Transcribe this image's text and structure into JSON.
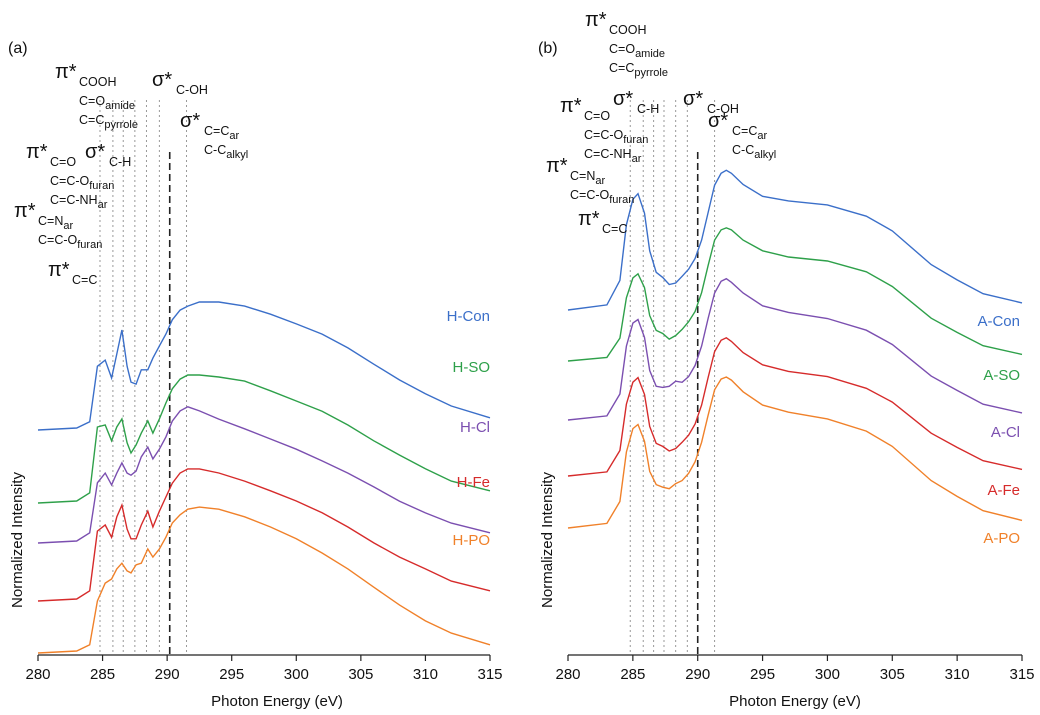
{
  "chart_data": [
    {
      "panel": "(a)",
      "type": "line",
      "xlabel": "Photon Energy (eV)",
      "ylabel": "Normalized Intensity",
      "xlim": [
        280,
        315
      ],
      "xticks": [
        280,
        285,
        290,
        295,
        300,
        305,
        310,
        315
      ],
      "reference_lines": [
        {
          "x": 284.8,
          "style": "dotted"
        },
        {
          "x": 285.8,
          "style": "dotted"
        },
        {
          "x": 286.6,
          "style": "dotted"
        },
        {
          "x": 287.5,
          "style": "dotted"
        },
        {
          "x": 288.4,
          "style": "dotted"
        },
        {
          "x": 289.4,
          "style": "dotted"
        },
        {
          "x": 290.2,
          "style": "dashed"
        },
        {
          "x": 291.5,
          "style": "dotted"
        }
      ],
      "annotations": [
        {
          "symbol": "π*",
          "lines": [
            "COOH",
            "C=O_amide",
            "C=C_pyrrole"
          ]
        },
        {
          "symbol": "σ*",
          "lines": [
            "C-OH"
          ]
        },
        {
          "symbol": "σ*",
          "lines": [
            "C=C_ar",
            "C-C_alkyl"
          ]
        },
        {
          "symbol": "π*",
          "lines": [
            "C=O",
            "C=C-O_furan",
            "C=C-NH_ar"
          ]
        },
        {
          "symbol": "σ*",
          "lines": [
            "C-H"
          ]
        },
        {
          "symbol": "π*",
          "lines": [
            "C=N_ar",
            "C=C-O_furan"
          ]
        },
        {
          "symbol": "π*",
          "lines": [
            "C=C"
          ]
        }
      ],
      "series": [
        {
          "name": "H-Con",
          "color": "#3b6fc9",
          "x": [
            280,
            283,
            284,
            284.6,
            285.2,
            285.7,
            286.1,
            286.5,
            286.9,
            287.2,
            287.6,
            288.0,
            288.5,
            288.9,
            289.4,
            289.9,
            290.4,
            291.0,
            291.6,
            292.5,
            294,
            296,
            298,
            300,
            302,
            304,
            306,
            308,
            310,
            312,
            315
          ],
          "y": [
            0.0,
            0.004,
            0.016,
            0.125,
            0.137,
            0.102,
            0.149,
            0.196,
            0.125,
            0.094,
            0.09,
            0.118,
            0.118,
            0.141,
            0.165,
            0.188,
            0.216,
            0.235,
            0.243,
            0.251,
            0.251,
            0.243,
            0.227,
            0.208,
            0.188,
            0.161,
            0.129,
            0.098,
            0.071,
            0.047,
            0.024
          ]
        },
        {
          "name": "H-SO",
          "color": "#2ea04a",
          "x": [
            280,
            283,
            284,
            284.6,
            285.2,
            285.7,
            286.1,
            286.5,
            286.9,
            287.2,
            287.6,
            288.0,
            288.5,
            288.9,
            289.4,
            289.9,
            290.4,
            291.0,
            291.6,
            292.5,
            294,
            296,
            298,
            300,
            302,
            304,
            306,
            308,
            310,
            312,
            315
          ],
          "y": [
            0.0,
            0.004,
            0.02,
            0.149,
            0.153,
            0.122,
            0.149,
            0.165,
            0.118,
            0.098,
            0.114,
            0.137,
            0.161,
            0.137,
            0.165,
            0.196,
            0.224,
            0.243,
            0.251,
            0.251,
            0.247,
            0.239,
            0.22,
            0.2,
            0.18,
            0.153,
            0.122,
            0.094,
            0.067,
            0.043,
            0.024
          ]
        },
        {
          "name": "H-Cl",
          "color": "#7b4fb0",
          "x": [
            280,
            283,
            284,
            284.6,
            285.2,
            285.7,
            286.1,
            286.5,
            286.9,
            287.2,
            287.6,
            288.0,
            288.5,
            288.9,
            289.4,
            289.9,
            290.4,
            291.0,
            291.6,
            292.5,
            294,
            296,
            298,
            300,
            302,
            304,
            306,
            308,
            310,
            312,
            315
          ],
          "y": [
            0.0,
            0.004,
            0.02,
            0.118,
            0.137,
            0.114,
            0.137,
            0.157,
            0.137,
            0.133,
            0.141,
            0.169,
            0.188,
            0.165,
            0.184,
            0.208,
            0.239,
            0.259,
            0.267,
            0.259,
            0.243,
            0.224,
            0.204,
            0.184,
            0.161,
            0.137,
            0.11,
            0.082,
            0.059,
            0.039,
            0.02
          ]
        },
        {
          "name": "H-Fe",
          "color": "#d62b2b",
          "x": [
            280,
            283,
            284,
            284.6,
            285.2,
            285.7,
            286.1,
            286.5,
            286.9,
            287.2,
            287.6,
            288.0,
            288.5,
            288.9,
            289.4,
            289.9,
            290.4,
            291.0,
            291.6,
            292.5,
            294,
            296,
            298,
            300,
            302,
            304,
            306,
            308,
            310,
            312,
            315
          ],
          "y": [
            0.0,
            0.004,
            0.02,
            0.137,
            0.149,
            0.125,
            0.165,
            0.188,
            0.141,
            0.122,
            0.122,
            0.149,
            0.176,
            0.145,
            0.176,
            0.204,
            0.231,
            0.251,
            0.259,
            0.259,
            0.251,
            0.235,
            0.216,
            0.196,
            0.173,
            0.145,
            0.114,
            0.086,
            0.063,
            0.039,
            0.02
          ]
        },
        {
          "name": "H-PO",
          "color": "#f0812a",
          "x": [
            280,
            283,
            284,
            284.6,
            285.2,
            285.7,
            286.1,
            286.5,
            286.9,
            287.2,
            287.6,
            288.0,
            288.5,
            288.9,
            289.4,
            289.9,
            290.4,
            291.0,
            291.6,
            292.5,
            294,
            296,
            298,
            300,
            302,
            304,
            306,
            308,
            310,
            312,
            315
          ],
          "y": [
            0.0,
            0.004,
            0.016,
            0.102,
            0.137,
            0.145,
            0.165,
            0.176,
            0.161,
            0.157,
            0.173,
            0.176,
            0.204,
            0.188,
            0.204,
            0.227,
            0.255,
            0.271,
            0.282,
            0.286,
            0.282,
            0.267,
            0.247,
            0.224,
            0.196,
            0.165,
            0.129,
            0.094,
            0.063,
            0.039,
            0.016
          ]
        }
      ]
    },
    {
      "panel": "(b)",
      "type": "line",
      "xlabel": "Photon Energy (eV)",
      "ylabel": "Normalized Intensity",
      "xlim": [
        280,
        315
      ],
      "xticks": [
        280,
        285,
        290,
        295,
        300,
        305,
        310,
        315
      ],
      "reference_lines": [
        {
          "x": 284.8,
          "style": "dotted"
        },
        {
          "x": 285.8,
          "style": "dotted"
        },
        {
          "x": 286.6,
          "style": "dotted"
        },
        {
          "x": 287.4,
          "style": "dotted"
        },
        {
          "x": 288.3,
          "style": "dotted"
        },
        {
          "x": 289.2,
          "style": "dotted"
        },
        {
          "x": 290.0,
          "style": "dashed"
        },
        {
          "x": 291.3,
          "style": "dotted"
        }
      ],
      "annotations": [
        {
          "symbol": "π*",
          "lines": [
            "COOH",
            "C=O_amide",
            "C=C_pyrrole"
          ]
        },
        {
          "symbol": "σ*",
          "lines": [
            "C-H"
          ]
        },
        {
          "symbol": "σ*",
          "lines": [
            "C-OH"
          ]
        },
        {
          "symbol": "σ*",
          "lines": [
            "C=C_ar",
            "C-C_alkyl"
          ]
        },
        {
          "symbol": "π*",
          "lines": [
            "C=O",
            "C=C-O_furan",
            "C=C-NH_ar"
          ]
        },
        {
          "symbol": "π*",
          "lines": [
            "C=N_ar",
            "C=C-O_furan"
          ]
        },
        {
          "symbol": "π*",
          "lines": [
            "C=C"
          ]
        }
      ],
      "series": [
        {
          "name": "A-Con",
          "color": "#3b6fc9",
          "x": [
            280,
            283,
            284,
            284.5,
            285.0,
            285.4,
            285.9,
            286.3,
            286.8,
            287.3,
            287.8,
            288.3,
            288.8,
            289.3,
            289.8,
            290.3,
            290.8,
            291.3,
            291.8,
            292.2,
            292.6,
            293.5,
            295,
            297,
            300,
            303,
            305,
            308,
            310,
            312,
            315
          ],
          "y": [
            0.0,
            0.01,
            0.058,
            0.167,
            0.217,
            0.228,
            0.19,
            0.116,
            0.074,
            0.064,
            0.05,
            0.053,
            0.066,
            0.08,
            0.101,
            0.137,
            0.191,
            0.245,
            0.268,
            0.274,
            0.268,
            0.246,
            0.223,
            0.214,
            0.206,
            0.184,
            0.155,
            0.089,
            0.059,
            0.032,
            0.014
          ]
        },
        {
          "name": "A-SO",
          "color": "#2ea04a",
          "x": [
            280,
            283,
            284,
            284.5,
            285.0,
            285.4,
            285.9,
            286.3,
            286.8,
            287.3,
            287.8,
            288.3,
            288.8,
            289.3,
            289.8,
            290.3,
            290.8,
            291.3,
            291.8,
            292.2,
            292.6,
            293.5,
            295,
            297,
            300,
            303,
            305,
            308,
            310,
            312,
            315
          ],
          "y": [
            0.0,
            0.007,
            0.045,
            0.124,
            0.163,
            0.171,
            0.144,
            0.089,
            0.06,
            0.054,
            0.043,
            0.05,
            0.062,
            0.077,
            0.097,
            0.134,
            0.187,
            0.237,
            0.257,
            0.261,
            0.257,
            0.237,
            0.216,
            0.204,
            0.196,
            0.175,
            0.146,
            0.084,
            0.056,
            0.03,
            0.013
          ]
        },
        {
          "name": "A-Cl",
          "color": "#7b4fb0",
          "x": [
            280,
            283,
            284,
            284.5,
            285.0,
            285.4,
            285.9,
            286.3,
            286.8,
            287.3,
            287.8,
            288.3,
            288.8,
            289.3,
            289.8,
            290.3,
            290.8,
            291.3,
            291.8,
            292.2,
            292.6,
            293.5,
            295,
            297,
            300,
            303,
            305,
            308,
            310,
            312,
            315
          ],
          "y": [
            0.0,
            0.008,
            0.051,
            0.145,
            0.19,
            0.197,
            0.162,
            0.097,
            0.066,
            0.064,
            0.066,
            0.076,
            0.074,
            0.085,
            0.107,
            0.145,
            0.199,
            0.249,
            0.272,
            0.277,
            0.27,
            0.249,
            0.224,
            0.211,
            0.199,
            0.176,
            0.148,
            0.086,
            0.058,
            0.031,
            0.014
          ]
        },
        {
          "name": "A-Fe",
          "color": "#d62b2b",
          "x": [
            280,
            283,
            284,
            284.5,
            285.0,
            285.4,
            285.9,
            286.3,
            286.8,
            287.3,
            287.8,
            288.3,
            288.8,
            289.3,
            289.8,
            290.3,
            290.8,
            291.3,
            291.8,
            292.2,
            292.6,
            293.5,
            295,
            297,
            300,
            303,
            305,
            308,
            310,
            312,
            315
          ],
          "y": [
            0.0,
            0.008,
            0.05,
            0.141,
            0.184,
            0.193,
            0.16,
            0.097,
            0.064,
            0.058,
            0.049,
            0.054,
            0.066,
            0.08,
            0.102,
            0.139,
            0.193,
            0.244,
            0.266,
            0.271,
            0.264,
            0.242,
            0.218,
            0.205,
            0.195,
            0.172,
            0.145,
            0.084,
            0.056,
            0.03,
            0.013
          ]
        },
        {
          "name": "A-PO",
          "color": "#f0812a",
          "x": [
            280,
            283,
            284,
            284.5,
            285.0,
            285.4,
            285.9,
            286.3,
            286.8,
            287.3,
            287.8,
            288.3,
            288.8,
            289.3,
            289.8,
            290.3,
            290.8,
            291.3,
            291.8,
            292.2,
            292.6,
            293.5,
            295,
            297,
            300,
            303,
            305,
            308,
            310,
            312,
            315
          ],
          "y": [
            0.0,
            0.009,
            0.052,
            0.149,
            0.195,
            0.203,
            0.17,
            0.111,
            0.085,
            0.08,
            0.077,
            0.087,
            0.093,
            0.107,
            0.13,
            0.168,
            0.221,
            0.271,
            0.292,
            0.296,
            0.29,
            0.267,
            0.241,
            0.227,
            0.214,
            0.19,
            0.16,
            0.093,
            0.062,
            0.034,
            0.015
          ]
        }
      ]
    }
  ]
}
